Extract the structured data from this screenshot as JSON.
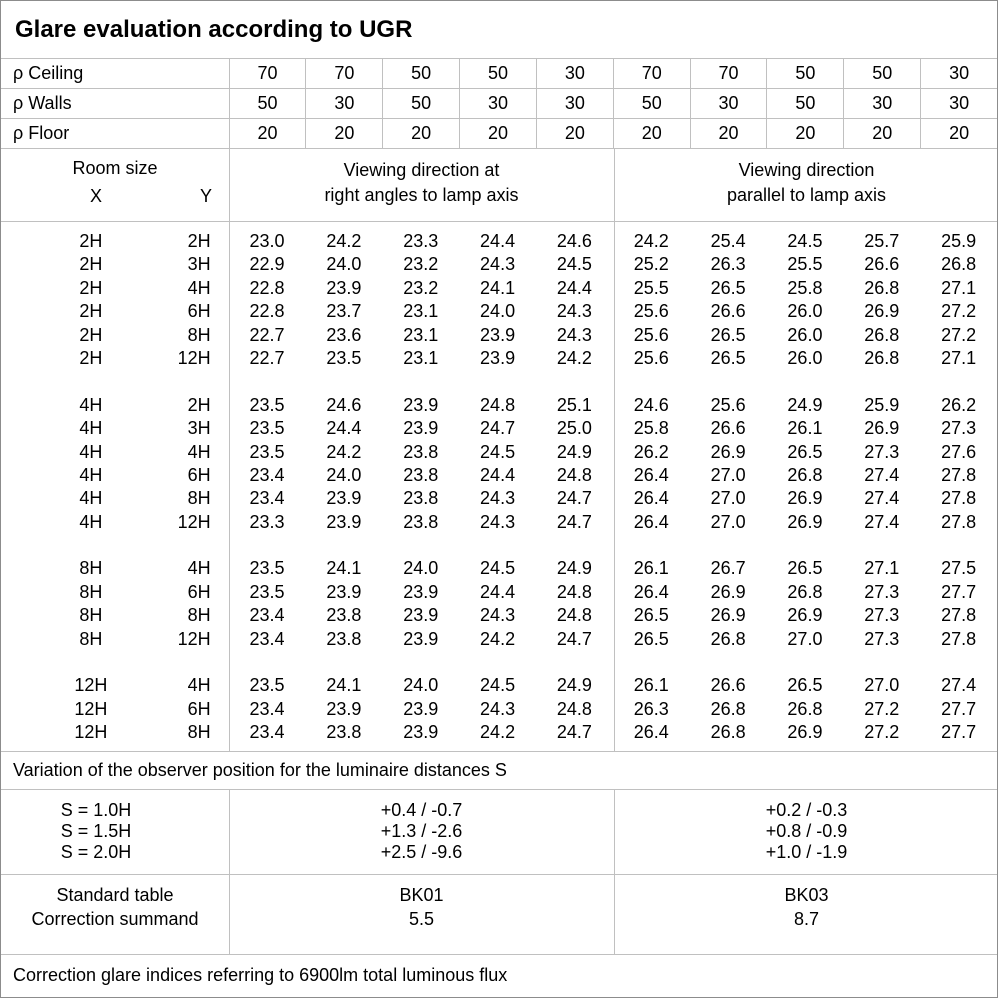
{
  "title": "Glare evaluation according to UGR",
  "reflectance_rows": [
    {
      "label": "ρ Ceiling",
      "values": [
        "70",
        "70",
        "50",
        "50",
        "30",
        "70",
        "70",
        "50",
        "50",
        "30"
      ]
    },
    {
      "label": "ρ Walls",
      "values": [
        "50",
        "30",
        "50",
        "30",
        "30",
        "50",
        "30",
        "50",
        "30",
        "30"
      ]
    },
    {
      "label": "ρ Floor",
      "values": [
        "20",
        "20",
        "20",
        "20",
        "20",
        "20",
        "20",
        "20",
        "20",
        "20"
      ]
    }
  ],
  "header": {
    "room_size": "Room size",
    "x": "X",
    "y": "Y",
    "group_a_lines": [
      "Viewing direction at",
      "right angles to lamp axis"
    ],
    "group_b_lines": [
      "Viewing direction",
      "parallel to lamp axis"
    ]
  },
  "ugr_blocks": [
    {
      "rows": [
        {
          "x": "2H",
          "y": "2H",
          "a": [
            "23.0",
            "24.2",
            "23.3",
            "24.4",
            "24.6"
          ],
          "b": [
            "24.2",
            "25.4",
            "24.5",
            "25.7",
            "25.9"
          ]
        },
        {
          "x": "2H",
          "y": "3H",
          "a": [
            "22.9",
            "24.0",
            "23.2",
            "24.3",
            "24.5"
          ],
          "b": [
            "25.2",
            "26.3",
            "25.5",
            "26.6",
            "26.8"
          ]
        },
        {
          "x": "2H",
          "y": "4H",
          "a": [
            "22.8",
            "23.9",
            "23.2",
            "24.1",
            "24.4"
          ],
          "b": [
            "25.5",
            "26.5",
            "25.8",
            "26.8",
            "27.1"
          ]
        },
        {
          "x": "2H",
          "y": "6H",
          "a": [
            "22.8",
            "23.7",
            "23.1",
            "24.0",
            "24.3"
          ],
          "b": [
            "25.6",
            "26.6",
            "26.0",
            "26.9",
            "27.2"
          ]
        },
        {
          "x": "2H",
          "y": "8H",
          "a": [
            "22.7",
            "23.6",
            "23.1",
            "23.9",
            "24.3"
          ],
          "b": [
            "25.6",
            "26.5",
            "26.0",
            "26.8",
            "27.2"
          ]
        },
        {
          "x": "2H",
          "y": "12H",
          "a": [
            "22.7",
            "23.5",
            "23.1",
            "23.9",
            "24.2"
          ],
          "b": [
            "25.6",
            "26.5",
            "26.0",
            "26.8",
            "27.1"
          ]
        }
      ]
    },
    {
      "rows": [
        {
          "x": "4H",
          "y": "2H",
          "a": [
            "23.5",
            "24.6",
            "23.9",
            "24.8",
            "25.1"
          ],
          "b": [
            "24.6",
            "25.6",
            "24.9",
            "25.9",
            "26.2"
          ]
        },
        {
          "x": "4H",
          "y": "3H",
          "a": [
            "23.5",
            "24.4",
            "23.9",
            "24.7",
            "25.0"
          ],
          "b": [
            "25.8",
            "26.6",
            "26.1",
            "26.9",
            "27.3"
          ]
        },
        {
          "x": "4H",
          "y": "4H",
          "a": [
            "23.5",
            "24.2",
            "23.8",
            "24.5",
            "24.9"
          ],
          "b": [
            "26.2",
            "26.9",
            "26.5",
            "27.3",
            "27.6"
          ]
        },
        {
          "x": "4H",
          "y": "6H",
          "a": [
            "23.4",
            "24.0",
            "23.8",
            "24.4",
            "24.8"
          ],
          "b": [
            "26.4",
            "27.0",
            "26.8",
            "27.4",
            "27.8"
          ]
        },
        {
          "x": "4H",
          "y": "8H",
          "a": [
            "23.4",
            "23.9",
            "23.8",
            "24.3",
            "24.7"
          ],
          "b": [
            "26.4",
            "27.0",
            "26.9",
            "27.4",
            "27.8"
          ]
        },
        {
          "x": "4H",
          "y": "12H",
          "a": [
            "23.3",
            "23.9",
            "23.8",
            "24.3",
            "24.7"
          ],
          "b": [
            "26.4",
            "27.0",
            "26.9",
            "27.4",
            "27.8"
          ]
        }
      ]
    },
    {
      "rows": [
        {
          "x": "8H",
          "y": "4H",
          "a": [
            "23.5",
            "24.1",
            "24.0",
            "24.5",
            "24.9"
          ],
          "b": [
            "26.1",
            "26.7",
            "26.5",
            "27.1",
            "27.5"
          ]
        },
        {
          "x": "8H",
          "y": "6H",
          "a": [
            "23.5",
            "23.9",
            "23.9",
            "24.4",
            "24.8"
          ],
          "b": [
            "26.4",
            "26.9",
            "26.8",
            "27.3",
            "27.7"
          ]
        },
        {
          "x": "8H",
          "y": "8H",
          "a": [
            "23.4",
            "23.8",
            "23.9",
            "24.3",
            "24.8"
          ],
          "b": [
            "26.5",
            "26.9",
            "26.9",
            "27.3",
            "27.8"
          ]
        },
        {
          "x": "8H",
          "y": "12H",
          "a": [
            "23.4",
            "23.8",
            "23.9",
            "24.2",
            "24.7"
          ],
          "b": [
            "26.5",
            "26.8",
            "27.0",
            "27.3",
            "27.8"
          ]
        }
      ]
    },
    {
      "rows": [
        {
          "x": "12H",
          "y": "4H",
          "a": [
            "23.5",
            "24.1",
            "24.0",
            "24.5",
            "24.9"
          ],
          "b": [
            "26.1",
            "26.6",
            "26.5",
            "27.0",
            "27.4"
          ]
        },
        {
          "x": "12H",
          "y": "6H",
          "a": [
            "23.4",
            "23.9",
            "23.9",
            "24.3",
            "24.8"
          ],
          "b": [
            "26.3",
            "26.8",
            "26.8",
            "27.2",
            "27.7"
          ]
        },
        {
          "x": "12H",
          "y": "8H",
          "a": [
            "23.4",
            "23.8",
            "23.9",
            "24.2",
            "24.7"
          ],
          "b": [
            "26.4",
            "26.8",
            "26.9",
            "27.2",
            "27.7"
          ]
        }
      ]
    }
  ],
  "variation_note": "Variation of the observer position for the luminaire distances S",
  "s_section": {
    "labels": [
      "S = 1.0H",
      "S = 1.5H",
      "S = 2.0H"
    ],
    "group_a": [
      "+0.4 / -0.7",
      "+1.3 / -2.6",
      "+2.5 / -9.6"
    ],
    "group_b": [
      "+0.2 / -0.3",
      "+0.8 / -0.9",
      "+1.0 / -1.9"
    ]
  },
  "standard_section": {
    "labels": [
      "Standard table",
      "Correction summand"
    ],
    "group_a": [
      "BK01",
      "5.5"
    ],
    "group_b": [
      "BK03",
      "8.7"
    ]
  },
  "footer_note": "Correction glare indices referring to 6900lm total luminous flux"
}
